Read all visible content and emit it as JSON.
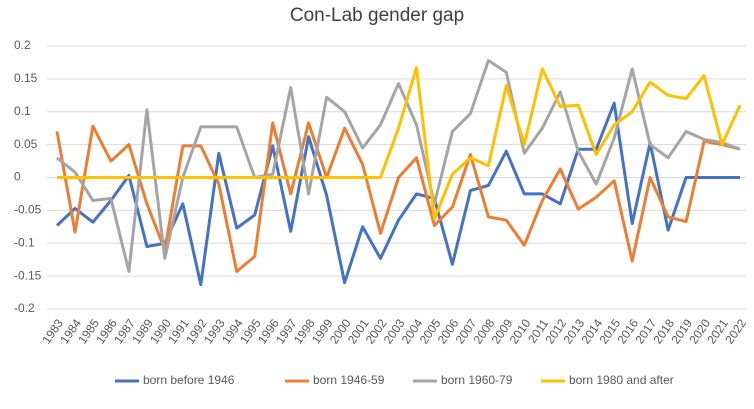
{
  "chart_data": {
    "type": "line",
    "title": "Con-Lab gender gap",
    "categories": [
      "1983",
      "1984",
      "1985",
      "1986",
      "1987",
      "1989",
      "1990",
      "1991",
      "1992",
      "1993",
      "1994",
      "1995",
      "1996",
      "1997",
      "1998",
      "1999",
      "2000",
      "2001",
      "2002",
      "2003",
      "2004",
      "2005",
      "2006",
      "2007",
      "2008",
      "2009",
      "2010",
      "2011",
      "2012",
      "2013",
      "2014",
      "2015",
      "2016",
      "2017",
      "2018",
      "2019",
      "2020",
      "2021",
      "2022"
    ],
    "series": [
      {
        "name": "born before 1946",
        "color": "#4472c4",
        "values": [
          -0.073,
          -0.047,
          -0.068,
          -0.035,
          0.003,
          -0.105,
          -0.1,
          -0.04,
          -0.163,
          0.037,
          -0.077,
          -0.057,
          0.048,
          -0.082,
          0.062,
          -0.027,
          -0.16,
          -0.075,
          -0.123,
          -0.065,
          -0.025,
          -0.032,
          -0.132,
          -0.02,
          -0.012,
          0.04,
          -0.025,
          -0.025,
          -0.04,
          0.043,
          0.043,
          0.113,
          -0.07,
          0.053,
          -0.08,
          0,
          0,
          0,
          0
        ]
      },
      {
        "name": "born 1946-59",
        "color": "#ed7d31",
        "values": [
          0.07,
          -0.083,
          0.078,
          0.025,
          0.05,
          -0.04,
          -0.11,
          0.048,
          0.048,
          -0.01,
          -0.143,
          -0.12,
          0.083,
          -0.025,
          0.083,
          0,
          0.075,
          0.02,
          -0.085,
          0,
          0.03,
          -0.073,
          -0.045,
          0.035,
          -0.06,
          -0.065,
          -0.103,
          -0.035,
          0.013,
          -0.048,
          -0.03,
          -0.005,
          -0.127,
          0,
          -0.06,
          -0.067,
          0.055,
          0.05,
          0.043
        ]
      },
      {
        "name": "born 1960-79",
        "color": "#a5a5a5",
        "values": [
          0.03,
          0.008,
          -0.035,
          -0.032,
          -0.143,
          0.103,
          -0.123,
          0,
          0.077,
          0.077,
          0.077,
          0,
          0.005,
          0.137,
          -0.025,
          0.122,
          0.1,
          0.045,
          0.08,
          0.143,
          0.08,
          -0.04,
          0.07,
          0.097,
          0.178,
          0.16,
          0.037,
          0.075,
          0.13,
          0.04,
          -0.01,
          0.06,
          0.165,
          0.05,
          0.03,
          0.07,
          0.058,
          0.053,
          0.043
        ]
      },
      {
        "name": "born 1980 and after",
        "color": "#ffc000",
        "values": [
          0,
          0,
          0,
          0,
          0,
          0,
          0,
          0,
          0,
          0,
          0,
          0,
          0,
          0,
          0,
          0,
          0,
          0,
          0,
          0.075,
          0.167,
          -0.063,
          0.005,
          0.03,
          0.018,
          0.14,
          0.05,
          0.165,
          0.108,
          0.11,
          0.035,
          0.08,
          0.1,
          0.145,
          0.125,
          0.12,
          0.155,
          0.05,
          0.11
        ]
      }
    ],
    "ylim": [
      -0.2,
      0.2
    ],
    "yticks": [
      -0.2,
      -0.15,
      -0.1,
      -0.05,
      0,
      0.05,
      0.1,
      0.15,
      0.2
    ],
    "grid": true,
    "legend": "bottom"
  }
}
